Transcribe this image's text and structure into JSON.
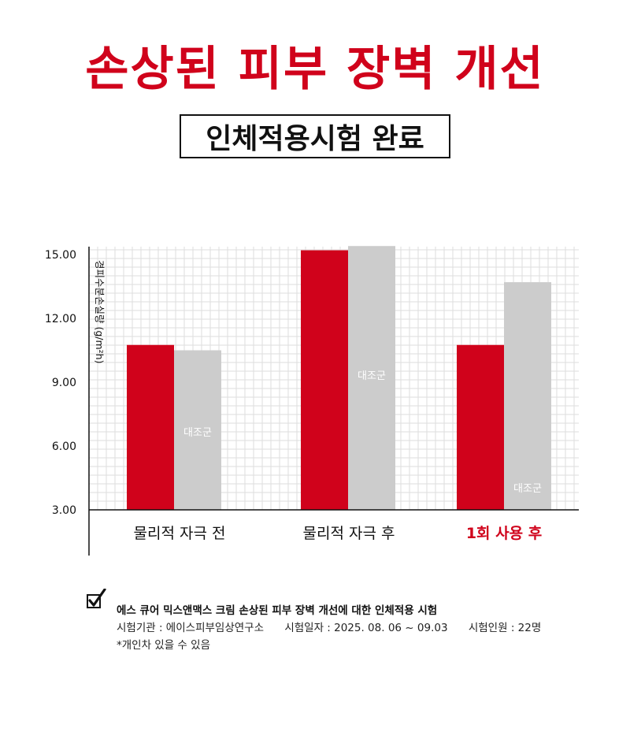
{
  "header": {
    "title": "손상된 피부 장벽 개선",
    "subtitle": "인체적용시험 완료"
  },
  "chart_data": {
    "type": "bar",
    "categories": [
      "물리적 자극 전",
      "물리적 자극 후",
      "1회 사용 후"
    ],
    "highlight_category_index": 2,
    "series": [
      {
        "name": "",
        "values": [
          10.75,
          15.2,
          10.75
        ],
        "color": "#d0021b"
      },
      {
        "name": "대조군",
        "values": [
          10.5,
          15.4,
          13.7
        ],
        "color": "#cccccc"
      }
    ],
    "bar_labels": [
      "대조군",
      "대조군",
      "대조군"
    ],
    "ylabel": "경피수분손실량 (g/m²h)",
    "yticks": [
      "3.00",
      "6.00",
      "9.00",
      "12.00",
      "15.00"
    ],
    "ytick_values": [
      3,
      6,
      9,
      12,
      15
    ],
    "ylim": [
      3,
      15
    ],
    "grid": true
  },
  "footnote": {
    "title": "에스 큐어 믹스앤맥스 크림 손상된 피부 장벽 개선에 대한 인체적용 시험",
    "institution": "시험기관 : 에이스피부임상연구소",
    "period": "시험일자 : 2025. 08. 06 ~ 09.03",
    "subjects": "시험인원 : 22명",
    "disclaimer": "*개인차 있을 수 있음"
  },
  "colors": {
    "accent": "#d0021b",
    "control": "#cccccc",
    "grid": "#dddddd"
  },
  "icons": {
    "check": "checkbox-check-icon"
  }
}
